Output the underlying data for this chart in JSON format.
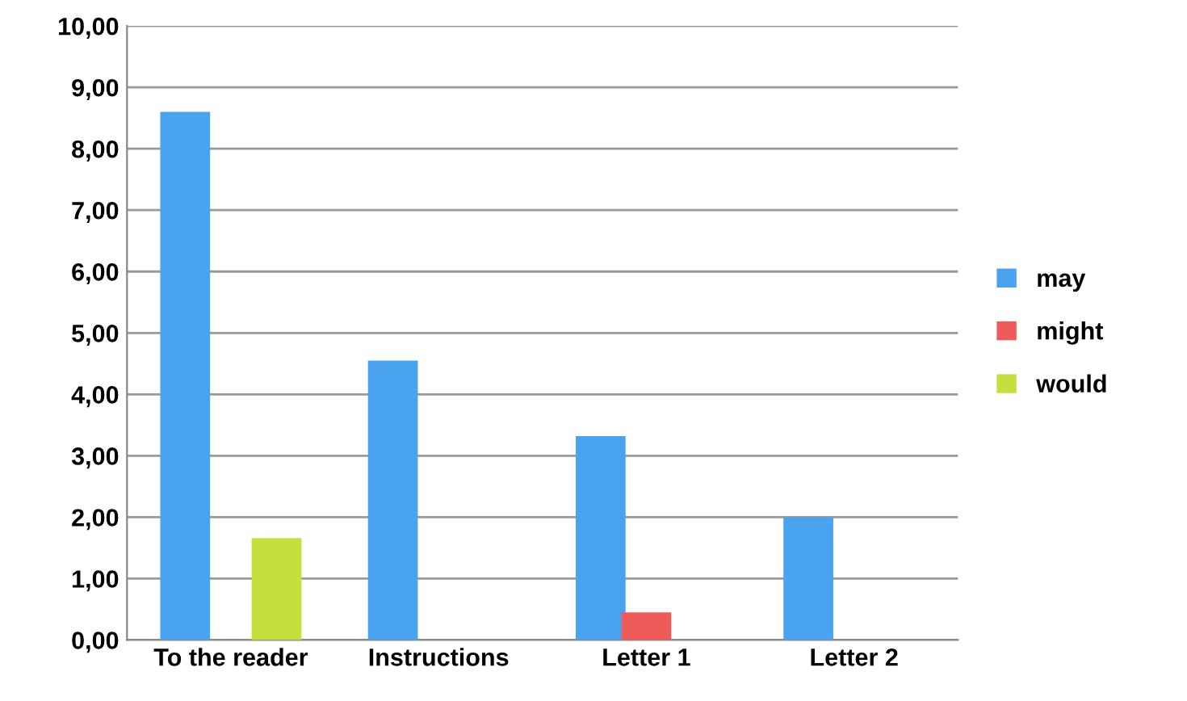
{
  "chart_data": {
    "type": "bar",
    "categories": [
      "To the reader",
      "Instructions",
      "Letter 1",
      "Letter 2"
    ],
    "series": [
      {
        "name": "may",
        "color": "#4aa3ee",
        "values": [
          8.6,
          4.55,
          3.32,
          2.0
        ]
      },
      {
        "name": "might",
        "color": "#ee5b5b",
        "values": [
          0,
          0,
          0.45,
          0
        ]
      },
      {
        "name": "would",
        "color": "#c5df3e",
        "values": [
          1.66,
          0,
          0,
          0
        ]
      }
    ],
    "ylim": [
      0,
      10
    ],
    "yticks": [
      {
        "value": 0,
        "label": "0,00"
      },
      {
        "value": 1,
        "label": "1,00"
      },
      {
        "value": 2,
        "label": "2,00"
      },
      {
        "value": 3,
        "label": "3,00"
      },
      {
        "value": 4,
        "label": "4,00"
      },
      {
        "value": 5,
        "label": "5,00"
      },
      {
        "value": 6,
        "label": "6,00"
      },
      {
        "value": 7,
        "label": "7,00"
      },
      {
        "value": 8,
        "label": "8,00"
      },
      {
        "value": 9,
        "label": "9,00"
      },
      {
        "value": 10,
        "label": "10,00"
      }
    ],
    "grid": "y",
    "legend": "right"
  }
}
